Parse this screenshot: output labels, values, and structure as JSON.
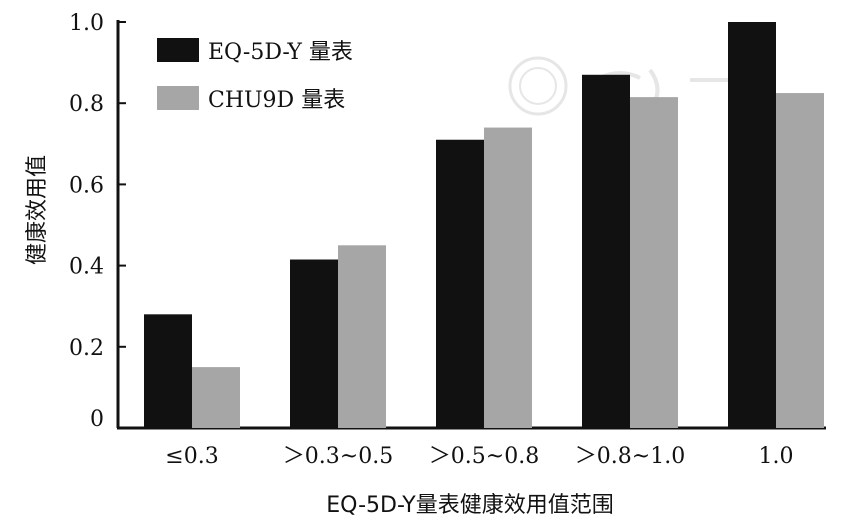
{
  "chart_data": {
    "type": "bar",
    "title": "",
    "xlabel": "EQ-5D-Y量表健康效用值范围",
    "ylabel": "健康效用值",
    "ylim": [
      0,
      1.0
    ],
    "yticks": [
      0,
      0.2,
      0.4,
      0.6,
      0.8,
      1.0
    ],
    "ytick_labels": [
      "0",
      "0.2",
      "0.4",
      "0.6",
      "0.8",
      "1.0"
    ],
    "categories": [
      "≤0.3",
      "＞0.3~0.5",
      "＞0.5~0.8",
      "＞0.8~1.0",
      "1.0"
    ],
    "series": [
      {
        "name": "EQ-5D-Y 量表",
        "color": "#111111",
        "values": [
          0.28,
          0.415,
          0.71,
          0.87,
          1.0
        ]
      },
      {
        "name": "CHU9D 量表",
        "color": "#a6a6a6",
        "values": [
          0.15,
          0.45,
          0.74,
          0.815,
          0.825
        ]
      }
    ],
    "legend": "top-left",
    "grid": false
  }
}
